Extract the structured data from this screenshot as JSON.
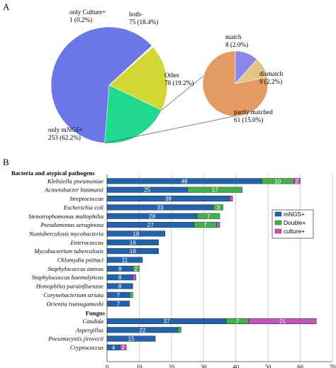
{
  "panel_a_label": "A",
  "panel_b_label": "B",
  "colors": {
    "mngs": "#1f64b0",
    "double": "#3fb24a",
    "culture": "#c354c0",
    "pie_mngs": "#6b77e6",
    "pie_other": "#20d98f",
    "pie_both": "#d2d736",
    "pie_culture": "#f2f2d0",
    "sub_partly": "#e49a63",
    "sub_dismatch": "#8a86ec",
    "sub_match": "#e2c488",
    "grid": "#c2c2c2"
  },
  "chart_data": [
    {
      "type": "pie",
      "slices": [
        {
          "label": "only mNGS+",
          "value": 253,
          "percent": "62.2%"
        },
        {
          "label": "only Culture+",
          "value": 1,
          "percent": "0.2%"
        },
        {
          "label": "both-",
          "value": 75,
          "percent": "18.4%"
        },
        {
          "label": "Other",
          "value": 78,
          "percent": "19.2%"
        }
      ],
      "text": {
        "mngs": [
          "only mNGS+",
          "253 (62.2%)"
        ],
        "culture": [
          "only Culture+",
          "1 (0.2%)"
        ],
        "both": [
          "both-",
          "75 (18.4%)"
        ],
        "other": [
          "Other",
          "78 (19.2%)"
        ]
      }
    },
    {
      "type": "pie",
      "slices": [
        {
          "label": "partly matched",
          "value": 61,
          "percent": "15.0%"
        },
        {
          "label": "dismatch",
          "value": 9,
          "percent": "2.2%"
        },
        {
          "label": "match",
          "value": 8,
          "percent": "2.0%"
        }
      ],
      "text": {
        "match": [
          "match",
          "8 (2.0%)"
        ],
        "dismatch": [
          "dismatch",
          "9 (2.2%)"
        ],
        "partly": [
          "partly matched",
          "61 (15.0%)"
        ]
      }
    },
    {
      "type": "bar",
      "orientation": "horizontal",
      "stacked": true,
      "groups": [
        {
          "name": "Bacteria and atypical pathogens",
          "categories": [
            {
              "name": "Klebsiella pneumoniae",
              "values": [
                48,
                10,
                2
              ]
            },
            {
              "name": "Acinetobacter baumanii",
              "values": [
                25,
                17,
                0
              ]
            },
            {
              "name": "Streptococcus",
              "values": [
                38,
                0,
                1
              ]
            },
            {
              "name": "Escherichia coli",
              "values": [
                33,
                3,
                0
              ]
            },
            {
              "name": "Stenotrophomonas maltophilia",
              "values": [
                28,
                7,
                0
              ]
            },
            {
              "name": "Pseudomonas aeruginosa",
              "values": [
                27,
                7,
                1
              ]
            },
            {
              "name": "Nontuberculosis mycobacteria",
              "values": [
                18,
                0,
                0
              ]
            },
            {
              "name": "Enterococcus",
              "values": [
                16,
                0,
                0
              ]
            },
            {
              "name": "Mycobacterium tuberculosis",
              "values": [
                16,
                0,
                0
              ]
            },
            {
              "name": "Chlamydia psittaci",
              "values": [
                11,
                0,
                0
              ]
            },
            {
              "name": "Staphylococcus aureus",
              "values": [
                8,
                2,
                0
              ]
            },
            {
              "name": "Staphylococcus haemolyticus",
              "values": [
                8,
                0,
                1
              ]
            },
            {
              "name": "Hemophilus parainfluenzae",
              "values": [
                8,
                0,
                0
              ]
            },
            {
              "name": "Corynebacterium striata",
              "values": [
                7,
                1,
                0
              ]
            },
            {
              "name": "Orientia tsutsugamushi",
              "values": [
                7,
                0,
                0
              ]
            }
          ]
        },
        {
          "name": "Fungus",
          "categories": [
            {
              "name": "Candida",
              "values": [
                37,
                7,
                21
              ]
            },
            {
              "name": "Aspergillus",
              "values": [
                22,
                1,
                0
              ]
            },
            {
              "name": "Pneumocystis jirovecii",
              "values": [
                15,
                0,
                0
              ]
            },
            {
              "name": "Cryptococcus",
              "values": [
                4,
                0,
                2
              ]
            }
          ]
        }
      ],
      "series": [
        {
          "name": "mNGS+"
        },
        {
          "name": "Double+"
        },
        {
          "name": "culture+"
        }
      ],
      "value_labels": {
        "Klebsiella pneumoniae": [
          "48",
          "10",
          "2"
        ],
        "Acinetobacter baumanii": [
          "25",
          "17",
          ""
        ],
        "Streptococcus": [
          "38",
          "",
          ""
        ],
        "Escherichia coli": [
          "33",
          "3",
          ""
        ],
        "Stenotrophomonas maltophilia": [
          "28",
          "7",
          ""
        ],
        "Pseudomonas aeruginosa": [
          "27",
          "7",
          ""
        ],
        "Nontuberculosis mycobacteria": [
          "18",
          "",
          ""
        ],
        "Enterococcus": [
          "16",
          "",
          ""
        ],
        "Mycobacterium tuberculosis": [
          "16",
          "",
          ""
        ],
        "Chlamydia psittaci": [
          "11",
          "",
          ""
        ],
        "Staphylococcus aureus": [
          "8",
          "2",
          ""
        ],
        "Staphylococcus haemolyticus": [
          "8",
          "",
          ""
        ],
        "Hemophilus parainfluenzae": [
          "8",
          "",
          ""
        ],
        "Corynebacterium striata": [
          "7",
          "",
          ""
        ],
        "Orientia tsutsugamushi": [
          "7",
          "",
          ""
        ],
        "Candida": [
          "37",
          "7",
          "21"
        ],
        "Aspergillus": [
          "22",
          "",
          ""
        ],
        "Pneumocystis jirovecii": [
          "15",
          "",
          ""
        ],
        "Cryptococcus": [
          "4",
          "",
          "2"
        ]
      },
      "xlim": [
        0,
        70
      ],
      "xticks": [
        0,
        10,
        20,
        30,
        40,
        50,
        60,
        70
      ],
      "grid": true,
      "legend": "right"
    }
  ]
}
